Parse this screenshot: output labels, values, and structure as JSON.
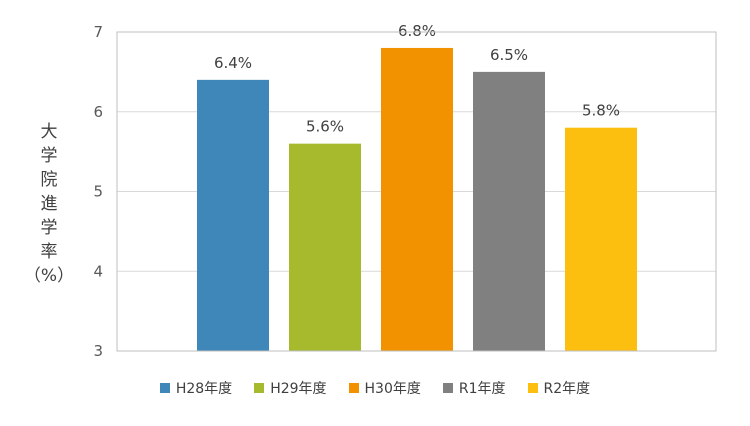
{
  "chart_data": {
    "type": "bar",
    "categories": [
      "H28年度",
      "H29年度",
      "H30年度",
      "R1年度",
      "R2年度"
    ],
    "values": [
      6.4,
      5.6,
      6.8,
      6.5,
      5.8
    ],
    "data_labels": [
      "6.4%",
      "5.6%",
      "6.8%",
      "6.5%",
      "5.8%"
    ],
    "colors": [
      "#3f87b9",
      "#a7b92d",
      "#f39200",
      "#808080",
      "#fcbf0f"
    ],
    "title": "",
    "xlabel": "",
    "ylabel": "大\n学\n院\n進\n学\n率",
    "ylabel_unit": "（%）",
    "ylim": [
      3,
      7
    ],
    "yticks": [
      "3",
      "4",
      "5",
      "6",
      "7"
    ],
    "grid": true,
    "legend": "bottom",
    "gridline_color": "#d9d9d9",
    "axis_color": "#bfbfbf"
  }
}
